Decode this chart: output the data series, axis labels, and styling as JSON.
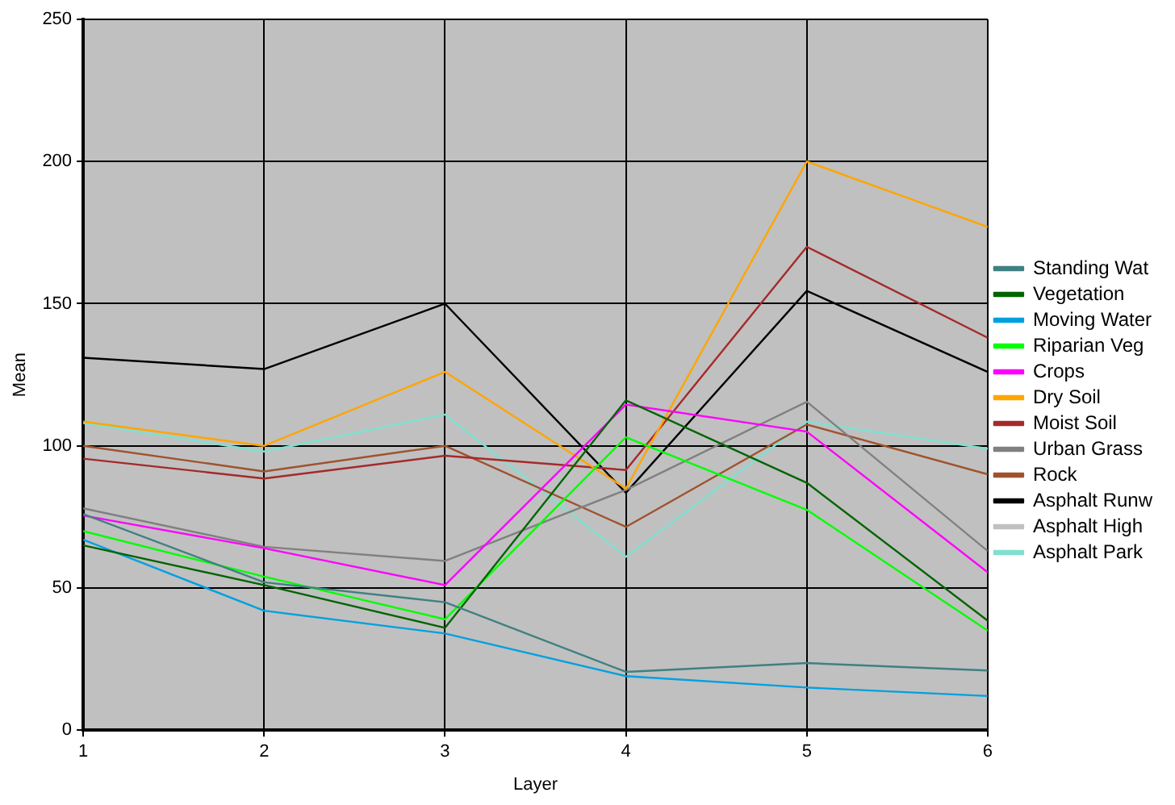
{
  "chart_data": {
    "type": "line",
    "xlabel": "Layer",
    "ylabel": "Mean",
    "x": [
      1,
      2,
      3,
      4,
      5,
      6
    ],
    "xlim": [
      1,
      6
    ],
    "xticks": [
      1,
      2,
      3,
      4,
      5,
      6
    ],
    "ylim": [
      0,
      250
    ],
    "yticks": [
      0,
      50,
      100,
      150,
      200,
      250
    ],
    "grid": true,
    "legend": "right",
    "marker": "none",
    "line_style": "solid",
    "series": [
      {
        "name": "Standing Wat",
        "color": "#408080",
        "values": [
          76,
          52,
          45,
          20.5,
          23.6,
          21
        ]
      },
      {
        "name": "Vegetation",
        "color": "#006400",
        "values": [
          65,
          51,
          36,
          116,
          87,
          38.5
        ]
      },
      {
        "name": "Moving Water",
        "color": "#00a0e0",
        "values": [
          67,
          42,
          34,
          19,
          15,
          12
        ]
      },
      {
        "name": "Riparian Veg",
        "color": "#00ff00",
        "values": [
          70,
          54,
          39,
          103,
          77.5,
          35
        ]
      },
      {
        "name": "Crops",
        "color": "#ff00ff",
        "values": [
          75.5,
          64,
          51,
          114.5,
          105,
          55.5
        ]
      },
      {
        "name": "Dry Soil",
        "color": "#ffa500",
        "values": [
          108.5,
          100,
          126,
          85,
          200,
          177
        ]
      },
      {
        "name": "Moist Soil",
        "color": "#a52a2a",
        "values": [
          95.5,
          88.5,
          96.5,
          91.5,
          170,
          138
        ]
      },
      {
        "name": "Urban Grass",
        "color": "#808080",
        "values": [
          78,
          64.5,
          59.5,
          84.5,
          115.5,
          63
        ]
      },
      {
        "name": "Rock",
        "color": "#a0522d",
        "values": [
          100,
          91,
          100,
          71.5,
          107.5,
          90
        ]
      },
      {
        "name": "Asphalt Runw",
        "color": "#000000",
        "values": [
          131,
          127,
          150,
          83.5,
          154.5,
          126
        ]
      },
      {
        "name": "Asphalt High",
        "color": "#c0c0c0",
        "values": [
          null,
          null,
          null,
          null,
          null,
          null
        ]
      },
      {
        "name": "Asphalt Park",
        "color": "#80e0d0",
        "values": [
          108,
          98,
          111,
          61,
          108.5,
          99
        ]
      }
    ]
  }
}
